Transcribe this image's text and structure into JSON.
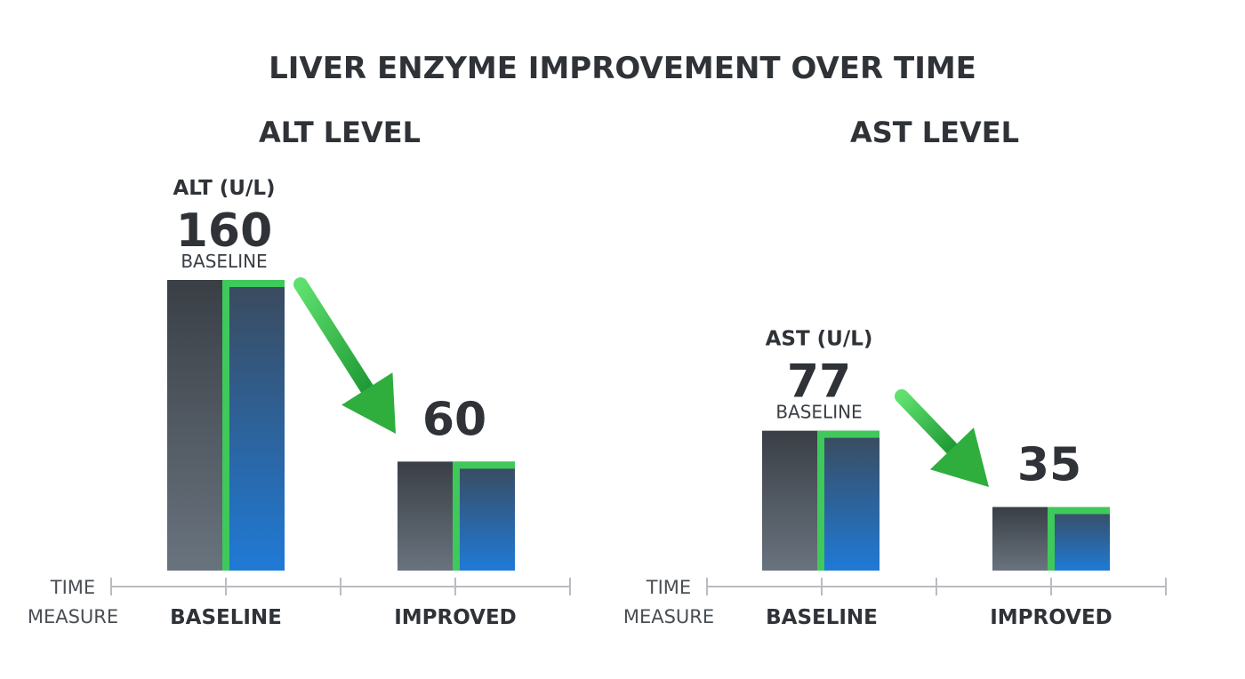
{
  "title": "LIVER ENZYME IMPROVEMENT OVER TIME",
  "axis": {
    "title_line1": "TIME",
    "title_line2": "MEASURE"
  },
  "colors": {
    "bar_dark_top": "#3a3f46",
    "bar_dark_bottom": "#69737e",
    "bar_blue_top": "#3b4a5c",
    "bar_blue_bottom": "#1f7ad6",
    "accent_green": "#3ec95a",
    "arrow_green": "#2fae3e",
    "text": "#2f3338",
    "axis": "#b9bcc1"
  },
  "chart_data": [
    {
      "type": "bar",
      "title": "ALT LEVEL",
      "unit_label": "ALT (U/L)",
      "categories": [
        "BASELINE",
        "IMPROVED"
      ],
      "values": [
        160,
        60
      ],
      "baseline_note": "BASELINE",
      "xlabel": "TIME MEASURE",
      "ylabel": "",
      "ylim": [
        0,
        160
      ],
      "grid": false
    },
    {
      "type": "bar",
      "title": "AST LEVEL",
      "unit_label": "AST (U/L)",
      "categories": [
        "BASELINE",
        "IMPROVED"
      ],
      "values": [
        77,
        35
      ],
      "baseline_note": "BASELINE",
      "xlabel": "TIME MEASURE",
      "ylabel": "",
      "ylim": [
        0,
        97
      ],
      "grid": false
    }
  ]
}
